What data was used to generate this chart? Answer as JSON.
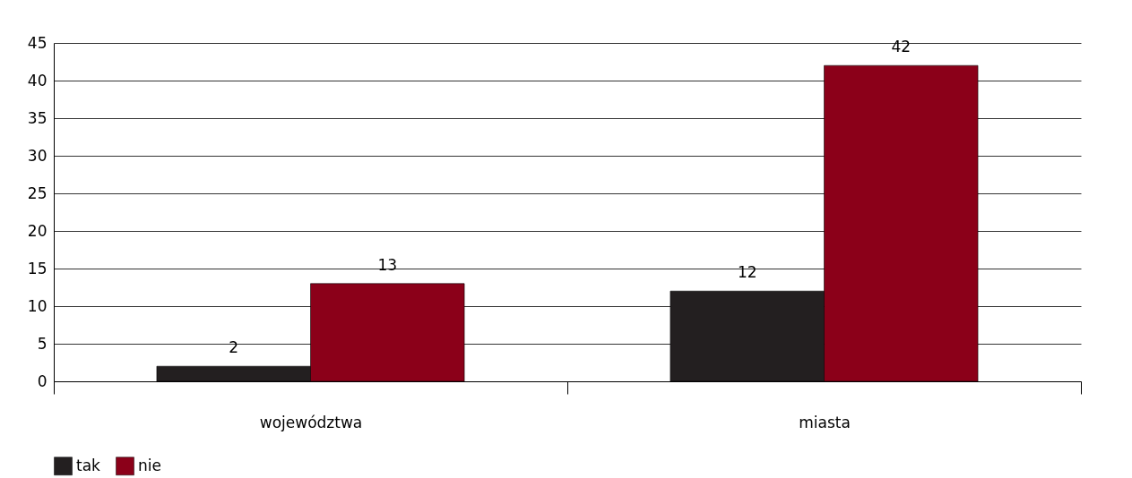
{
  "chart_data": {
    "type": "bar",
    "categories": [
      "województwa",
      "miasta"
    ],
    "series": [
      {
        "name": "tak",
        "color": "#231f20",
        "values": [
          2,
          12
        ]
      },
      {
        "name": "nie",
        "color": "#8b0019",
        "values": [
          13,
          42
        ]
      }
    ],
    "ylim": [
      0,
      45
    ],
    "yticks": [
      0,
      5,
      10,
      15,
      20,
      25,
      30,
      35,
      40,
      45
    ],
    "grid": "y",
    "legend": "bottom",
    "data_labels": true
  }
}
